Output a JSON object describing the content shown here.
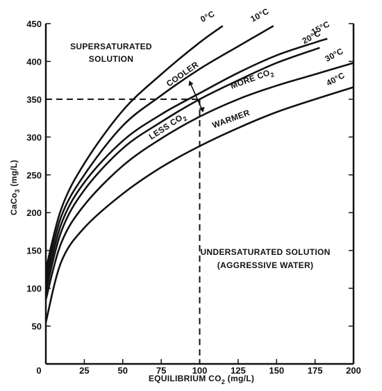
{
  "chart_data": {
    "type": "line",
    "title": "",
    "xlabel": "EQUILIBRIUM CO2 (mg/L)",
    "ylabel": "CaCo3 (mg/L)",
    "xlim": [
      0,
      200
    ],
    "ylim": [
      0,
      450
    ],
    "x_ticks": [
      "0",
      "25",
      "50",
      "75",
      "100",
      "125",
      "150",
      "175",
      "200"
    ],
    "y_ticks": [
      "50",
      "100",
      "150",
      "200",
      "250",
      "300",
      "350",
      "400",
      "450"
    ],
    "grid": false,
    "series": [
      {
        "name": "0°C",
        "x": [
          0,
          10,
          25,
          50,
          75,
          100,
          115
        ],
        "y": [
          125,
          205,
          265,
          335,
          383,
          425,
          447
        ]
      },
      {
        "name": "10°C",
        "x": [
          0,
          10,
          25,
          50,
          75,
          100,
          125,
          148
        ],
        "y": [
          115,
          195,
          250,
          315,
          355,
          390,
          420,
          447
        ]
      },
      {
        "name": "15°C",
        "x": [
          0,
          10,
          25,
          50,
          75,
          100,
          125,
          150,
          175,
          183
        ],
        "y": [
          105,
          185,
          240,
          295,
          330,
          358,
          385,
          408,
          425,
          430
        ]
      },
      {
        "name": "20°C",
        "x": [
          0,
          10,
          25,
          50,
          75,
          100,
          125,
          150,
          178
        ],
        "y": [
          95,
          175,
          230,
          285,
          320,
          350,
          375,
          398,
          418
        ]
      },
      {
        "name": "30°C",
        "x": [
          0,
          10,
          25,
          50,
          75,
          100,
          125,
          150,
          175,
          200
        ],
        "y": [
          85,
          160,
          210,
          262,
          298,
          327,
          350,
          368,
          383,
          398
        ]
      },
      {
        "name": "40°C",
        "x": [
          0,
          10,
          25,
          50,
          75,
          100,
          125,
          150,
          175,
          200
        ],
        "y": [
          55,
          135,
          180,
          225,
          260,
          288,
          312,
          333,
          350,
          366
        ]
      }
    ],
    "reference_point": {
      "x": 100,
      "y": 350
    },
    "annotations": {
      "supersaturated": [
        "SUPERSATURATED",
        "SOLUTION"
      ],
      "undersaturated": [
        "UNDERSATURATED SOLUTION",
        "(AGGRESSIVE WATER)"
      ],
      "cooler": "COOLER",
      "warmer": "WARMER",
      "more_co2": "MORE CO2",
      "less_co2": "LESS CO2"
    }
  }
}
